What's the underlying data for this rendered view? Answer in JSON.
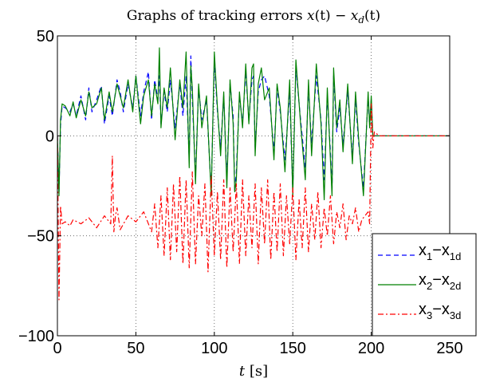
{
  "chart_data": {
    "type": "line",
    "title": "Graphs of tracking errors x(t) − x_d(t)",
    "title_parts": {
      "lead": "Graphs of tracking errors ",
      "var": "x",
      "arg1": "(t) − ",
      "var2": "x",
      "sub": "d",
      "arg2": "(t)"
    },
    "xlabel": "t [s]",
    "xlabel_parts": {
      "var": "t",
      "unit": " [s]"
    },
    "ylabel": "",
    "xlim": [
      0,
      250
    ],
    "ylim": [
      -100,
      50
    ],
    "xticks": [
      0,
      50,
      100,
      150,
      200,
      250
    ],
    "yticks": [
      -100,
      -50,
      0,
      50
    ],
    "xtick_labels": [
      "0",
      "50",
      "100",
      "150",
      "200",
      "250"
    ],
    "ytick_labels": [
      "−100",
      "−50",
      "0",
      "50"
    ],
    "grid": "dotted",
    "legend_position": "bottom-right",
    "series": [
      {
        "name": "x_1−x_1d",
        "label_parts": {
          "a": "x",
          "a_sub": "1",
          "b": "−x",
          "b_sub": "1d"
        },
        "color": "#0000ff",
        "style": "dashed",
        "x": [
          0,
          1,
          2,
          3,
          5,
          8,
          10,
          12,
          15,
          18,
          20,
          22,
          25,
          28,
          30,
          33,
          35,
          38,
          40,
          42,
          45,
          48,
          50,
          53,
          55,
          58,
          60,
          62,
          64,
          65,
          66,
          68,
          70,
          72,
          75,
          78,
          80,
          82,
          84,
          85,
          86,
          88,
          90,
          92,
          95,
          98,
          100,
          102,
          104,
          106,
          108,
          110,
          112,
          113,
          114,
          116,
          118,
          120,
          122,
          124,
          125,
          126,
          128,
          130,
          132,
          135,
          138,
          140,
          142,
          145,
          148,
          150,
          152,
          155,
          158,
          160,
          162,
          165,
          168,
          170,
          172,
          174,
          175,
          176,
          178,
          180,
          182,
          185,
          188,
          190,
          192,
          195,
          198,
          199,
          200,
          201,
          205,
          210,
          220,
          230,
          240,
          250
        ],
        "y": [
          0,
          -28,
          5,
          15,
          14,
          12,
          16,
          10,
          20,
          8,
          24,
          12,
          18,
          25,
          6,
          20,
          10,
          28,
          22,
          12,
          26,
          14,
          30,
          10,
          22,
          32,
          8,
          28,
          18,
          30,
          6,
          22,
          12,
          28,
          4,
          26,
          10,
          30,
          -12,
          40,
          18,
          -20,
          24,
          8,
          18,
          -28,
          38,
          12,
          -6,
          20,
          -22,
          26,
          10,
          -28,
          -18,
          20,
          6,
          32,
          8,
          28,
          30,
          -6,
          22,
          28,
          30,
          20,
          -8,
          24,
          12,
          -12,
          22,
          -28,
          34,
          8,
          -16,
          24,
          -4,
          30,
          8,
          -22,
          20,
          -8,
          -28,
          30,
          2,
          14,
          -4,
          22,
          -10,
          18,
          -4,
          -26,
          20,
          5,
          18,
          0,
          0,
          0,
          0,
          0,
          0,
          0
        ]
      },
      {
        "name": "x_2−x_2d",
        "label_parts": {
          "a": "x",
          "a_sub": "2",
          "b": "−x",
          "b_sub": "2d"
        },
        "color": "#008000",
        "style": "solid",
        "x": [
          0,
          1,
          2,
          3,
          5,
          8,
          10,
          12,
          15,
          18,
          20,
          22,
          25,
          28,
          30,
          33,
          35,
          38,
          40,
          42,
          45,
          48,
          50,
          53,
          55,
          58,
          60,
          62,
          64,
          65,
          66,
          68,
          70,
          72,
          75,
          78,
          80,
          82,
          84,
          85,
          86,
          88,
          90,
          92,
          95,
          98,
          100,
          102,
          104,
          106,
          108,
          110,
          112,
          113,
          114,
          116,
          118,
          120,
          122,
          124,
          125,
          126,
          128,
          130,
          132,
          135,
          138,
          140,
          142,
          145,
          148,
          150,
          152,
          155,
          158,
          160,
          162,
          165,
          168,
          170,
          172,
          174,
          175,
          176,
          178,
          180,
          182,
          185,
          188,
          190,
          192,
          195,
          198,
          199,
          200,
          201,
          205,
          210,
          220,
          230,
          240,
          250
        ],
        "y": [
          0,
          -30,
          8,
          16,
          15,
          10,
          17,
          9,
          18,
          10,
          22,
          14,
          16,
          24,
          8,
          22,
          12,
          26,
          20,
          14,
          28,
          12,
          30,
          6,
          20,
          28,
          10,
          26,
          16,
          44,
          4,
          24,
          14,
          34,
          -2,
          28,
          14,
          42,
          -16,
          35,
          24,
          -24,
          26,
          4,
          20,
          -30,
          42,
          14,
          -10,
          22,
          -26,
          28,
          6,
          -28,
          -22,
          22,
          4,
          36,
          6,
          34,
          36,
          -10,
          26,
          34,
          18,
          24,
          -12,
          26,
          14,
          -18,
          28,
          -30,
          38,
          6,
          -22,
          28,
          -10,
          36,
          6,
          -32,
          24,
          -12,
          -30,
          34,
          4,
          18,
          -8,
          26,
          -14,
          22,
          -2,
          -30,
          22,
          4,
          20,
          0,
          0,
          0,
          0,
          0,
          0,
          0
        ]
      },
      {
        "name": "x_3−x_3d",
        "label_parts": {
          "a": "x",
          "a_sub": "3",
          "b": "−x",
          "b_sub": "3d"
        },
        "color": "#ff0000",
        "style": "dashdot",
        "x": [
          0,
          1,
          2,
          3,
          5,
          8,
          10,
          15,
          20,
          25,
          30,
          34,
          35,
          36,
          37,
          38,
          40,
          45,
          50,
          55,
          60,
          62,
          64,
          66,
          68,
          70,
          72,
          74,
          76,
          78,
          80,
          82,
          84,
          86,
          88,
          90,
          92,
          94,
          96,
          98,
          100,
          102,
          104,
          106,
          108,
          110,
          112,
          114,
          116,
          118,
          120,
          122,
          124,
          126,
          128,
          130,
          132,
          134,
          136,
          138,
          140,
          142,
          144,
          146,
          148,
          150,
          152,
          154,
          156,
          158,
          160,
          162,
          164,
          166,
          168,
          170,
          172,
          174,
          176,
          178,
          180,
          182,
          184,
          186,
          188,
          190,
          192,
          194,
          196,
          198,
          199,
          200,
          201,
          202,
          205,
          210,
          220,
          230,
          240,
          250
        ],
        "y": [
          0,
          -82,
          -35,
          -44,
          -43,
          -45,
          -42,
          -44,
          -41,
          -46,
          -40,
          -44,
          -10,
          -48,
          -40,
          -36,
          -47,
          -40,
          -43,
          -38,
          -48,
          -34,
          -56,
          -30,
          -60,
          -26,
          -62,
          -24,
          -58,
          -20,
          -64,
          -22,
          -66,
          -18,
          -64,
          -30,
          -50,
          -24,
          -68,
          -20,
          -60,
          -28,
          -62,
          -22,
          -66,
          -26,
          -58,
          -24,
          -64,
          -22,
          -60,
          -30,
          -56,
          -24,
          -64,
          -26,
          -54,
          -22,
          -62,
          -28,
          -58,
          -24,
          -60,
          -30,
          -54,
          -26,
          -62,
          -32,
          -56,
          -26,
          -58,
          -34,
          -52,
          -28,
          -56,
          -36,
          -50,
          -30,
          -54,
          -38,
          -46,
          -34,
          -52,
          -40,
          -44,
          -36,
          -48,
          -42,
          -40,
          -38,
          -44,
          16,
          -6,
          2,
          0,
          0,
          0,
          0,
          0,
          0
        ]
      }
    ]
  }
}
